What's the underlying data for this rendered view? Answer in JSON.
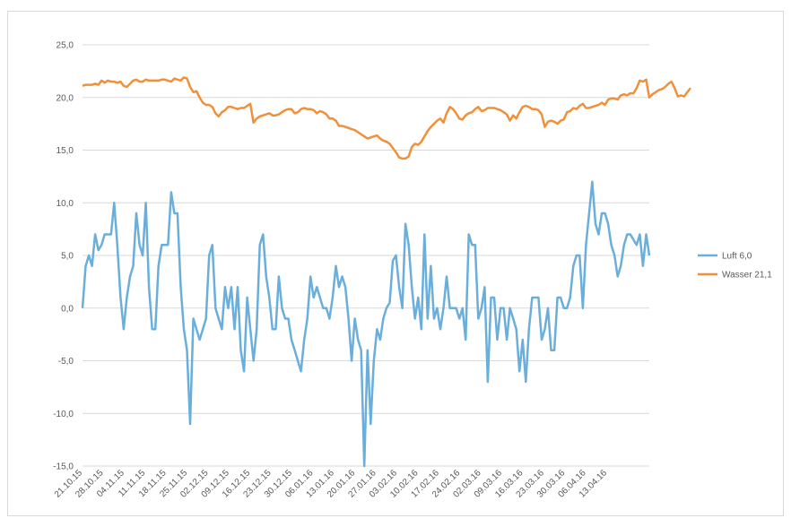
{
  "colors": {
    "luft": "#6aaedb",
    "wasser": "#f0903a",
    "grid": "#d9d9d9",
    "text": "#595959"
  },
  "chart_data": {
    "type": "line",
    "title": "",
    "xlabel": "",
    "ylabel": "",
    "ylim": [
      -15,
      25
    ],
    "y_ticks": [
      "25,0",
      "20,0",
      "15,0",
      "10,0",
      "5,0",
      "0,0",
      "-5,0",
      "-10,0",
      "-15,0"
    ],
    "x_ticks": [
      "21.10.15",
      "28.10.15",
      "04.11.15",
      "11.11.15",
      "18.11.15",
      "25.11.15",
      "02.12.15",
      "09.12.15",
      "16.12.15",
      "23.12.15",
      "30.12.15",
      "06.01.16",
      "13.01.16",
      "20.01.16",
      "27.01.16",
      "03.02.16",
      "10.02.16",
      "17.02.16",
      "24.02.16",
      "02.03.16",
      "09.03.16",
      "16.03.16",
      "23.03.16",
      "30.03.16",
      "06.04.16",
      "13.04.16"
    ],
    "grid": true,
    "legend_position": "right",
    "series": [
      {
        "name": "Luft 6,0",
        "values": [
          0,
          4,
          5,
          4,
          7,
          5.5,
          6,
          7,
          7,
          7,
          10,
          6,
          1,
          -2,
          1,
          3,
          4,
          9,
          6,
          5,
          10,
          2,
          -2,
          -2,
          4,
          6,
          6,
          6,
          11,
          9,
          9,
          2,
          -2,
          -4,
          -11,
          -1,
          -2,
          -3,
          -2,
          -1,
          5,
          6,
          0,
          -1,
          -2,
          2,
          0,
          2,
          -2,
          2,
          -4,
          -6,
          1,
          -2,
          -5,
          -2,
          6,
          7,
          3,
          1,
          -2,
          -2,
          3,
          0,
          -1,
          -1,
          -3,
          -4,
          -5,
          -6,
          -3,
          -1,
          3,
          1,
          2,
          1,
          0,
          0,
          -1,
          1,
          4,
          2,
          3,
          2,
          -1,
          -5,
          -1,
          -3,
          -4,
          -15,
          -4,
          -11,
          -5,
          -2,
          -3,
          -1,
          0,
          0.5,
          4.5,
          5,
          2,
          0,
          8,
          6,
          2,
          -1,
          1,
          -2,
          7,
          -1,
          4,
          -1,
          0,
          -2,
          0,
          3,
          0,
          0,
          0,
          -1,
          0,
          -3,
          7,
          6,
          6,
          -1,
          0,
          2,
          -7,
          1,
          1,
          -3,
          0,
          0,
          -3,
          0,
          -1,
          -2,
          -6,
          -3,
          -7,
          -2,
          1,
          1,
          1,
          -3,
          -2,
          0,
          -4,
          -4,
          1,
          1,
          0,
          0,
          1,
          4,
          5,
          5,
          0,
          6,
          9,
          12,
          8,
          7,
          9,
          9,
          8,
          6,
          5,
          3,
          4,
          6,
          7,
          7,
          6.5,
          6,
          7,
          4,
          7,
          5
        ]
      },
      {
        "name": "Wasser 21,1",
        "values": [
          21.1,
          21.2,
          21.2,
          21.2,
          21.3,
          21.2,
          21.6,
          21.4,
          21.6,
          21.5,
          21.5,
          21.4,
          21.5,
          21.1,
          21.0,
          21.3,
          21.6,
          21.7,
          21.5,
          21.5,
          21.7,
          21.6,
          21.6,
          21.6,
          21.6,
          21.7,
          21.7,
          21.6,
          21.5,
          21.8,
          21.7,
          21.6,
          21.9,
          21.8,
          21.0,
          20.5,
          20.6,
          20.0,
          19.5,
          19.3,
          19.3,
          19.1,
          18.5,
          18.2,
          18.6,
          18.8,
          19.1,
          19.1,
          19.0,
          18.9,
          19.0,
          19.0,
          19.2,
          19.4,
          17.6,
          18.0,
          18.2,
          18.3,
          18.4,
          18.5,
          18.3,
          18.3,
          18.4,
          18.6,
          18.8,
          18.9,
          18.9,
          18.5,
          18.6,
          18.9,
          19.0,
          18.9,
          18.9,
          18.8,
          18.5,
          18.7,
          18.6,
          18.4,
          18.0,
          18.0,
          17.8,
          17.3,
          17.3,
          17.2,
          17.1,
          17.0,
          16.9,
          16.7,
          16.5,
          16.3,
          16.1,
          16.2,
          16.3,
          16.4,
          16.1,
          15.9,
          15.8,
          15.6,
          15.2,
          14.8,
          14.3,
          14.2,
          14.2,
          14.4,
          15.3,
          15.6,
          15.5,
          15.8,
          16.3,
          16.8,
          17.2,
          17.5,
          17.8,
          18.0,
          17.6,
          18.5,
          19.1,
          18.9,
          18.5,
          18.0,
          17.9,
          18.3,
          18.5,
          18.6,
          18.9,
          19.1,
          18.7,
          18.8,
          19.0,
          19.0,
          19.0,
          18.9,
          18.8,
          18.6,
          18.4,
          17.8,
          18.3,
          18.0,
          18.6,
          19.1,
          19.2,
          19.1,
          18.9,
          18.9,
          18.8,
          18.4,
          17.2,
          17.7,
          17.8,
          17.7,
          17.5,
          17.8,
          17.9,
          18.6,
          18.7,
          19.0,
          18.9,
          19.2,
          19.4,
          19.0,
          19.0,
          19.1,
          19.2,
          19.3,
          19.5,
          19.3,
          19.8,
          19.9,
          19.9,
          19.8,
          20.2,
          20.3,
          20.2,
          20.4,
          20.4,
          20.9,
          21.6,
          21.5,
          21.7,
          20.0,
          20.3,
          20.5,
          20.7,
          20.8,
          21.0,
          21.3,
          21.5,
          20.9,
          20.1,
          20.2,
          20.1,
          20.5,
          20.9
        ]
      }
    ]
  }
}
